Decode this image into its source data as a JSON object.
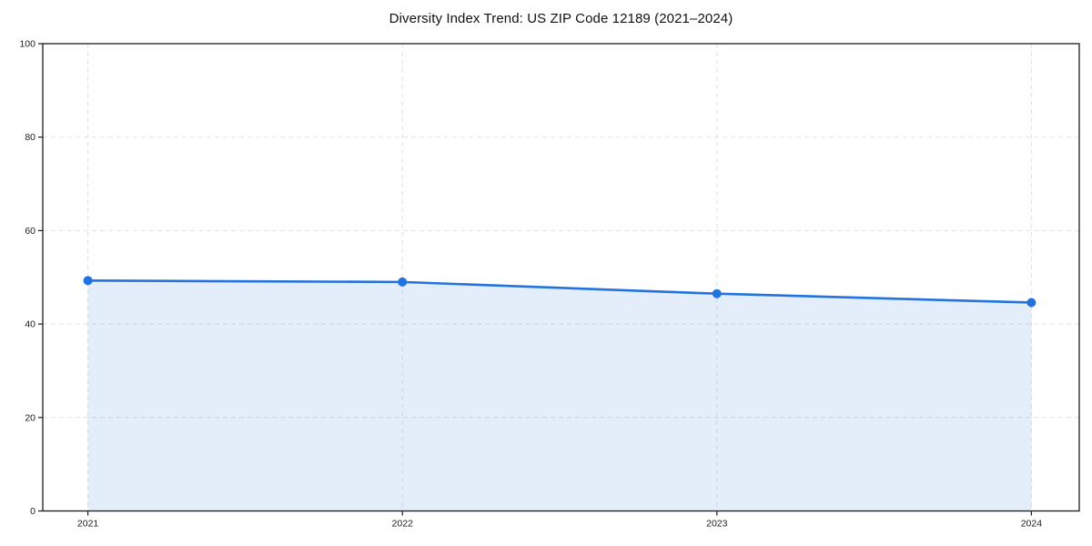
{
  "chart_data": {
    "type": "area",
    "title": "Diversity Index Trend: US ZIP Code 12189 (2021–2024)",
    "xlabel": "",
    "ylabel": "",
    "categories": [
      "2021",
      "2022",
      "2023",
      "2024"
    ],
    "series": [
      {
        "name": "Diversity Index",
        "values": [
          49.3,
          49.0,
          46.5,
          44.6
        ]
      }
    ],
    "ylim": [
      0,
      100
    ],
    "yticks": [
      0,
      20,
      40,
      60,
      80,
      100
    ],
    "grid": true,
    "grid_style": "dashed",
    "legend_position": "none",
    "colors": {
      "line": "#2272df",
      "marker": "#2272df",
      "area_fill": "rgba(34,114,223,0.12)",
      "grid": "#e2e2e2",
      "spine": "#1a1a1a",
      "text": "#1a1a1a",
      "background": "#ffffff"
    }
  }
}
